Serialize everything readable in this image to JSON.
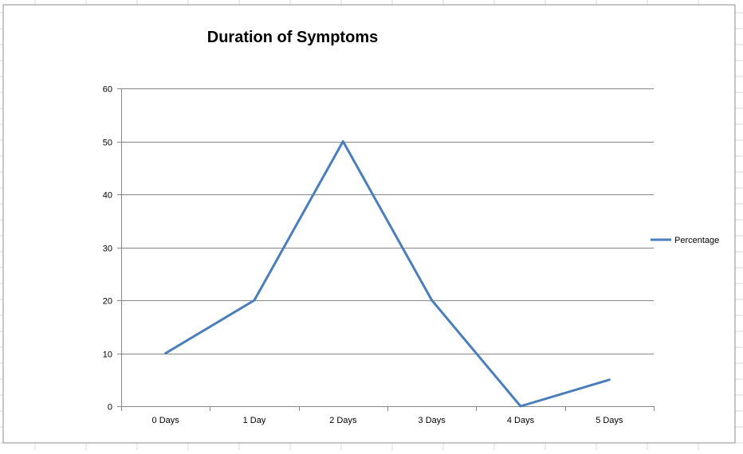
{
  "chart_data": {
    "type": "line",
    "title": "Duration of Symptoms",
    "categories": [
      "0 Days",
      "1 Day",
      "2 Days",
      "3 Days",
      "4 Days",
      "5 Days"
    ],
    "series": [
      {
        "name": "Percentage",
        "values": [
          10,
          20,
          50,
          20,
          0,
          5
        ],
        "color": "#4a7ebb"
      }
    ],
    "ylim": [
      0,
      60
    ],
    "yticks": [
      0,
      10,
      20,
      30,
      40,
      50,
      60
    ],
    "xlabel": "",
    "ylabel": "",
    "grid": true,
    "legend_position": "right",
    "colors": {
      "line": "#4a7ebb",
      "gridline": "#868686",
      "spreadsheet_grid": "#d9d9d9"
    }
  }
}
